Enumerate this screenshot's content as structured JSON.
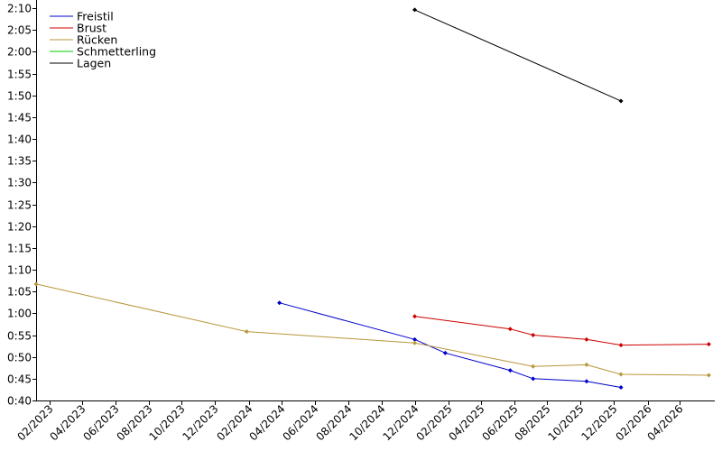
{
  "chart_data": {
    "type": "line",
    "x_axis": {
      "type": "date",
      "range": [
        "2023-01-07",
        "2026-06-04"
      ],
      "tick_labels": [
        "02/2023",
        "04/2023",
        "06/2023",
        "08/2023",
        "10/2023",
        "12/2023",
        "02/2024",
        "04/2024",
        "06/2024",
        "08/2024",
        "10/2024",
        "12/2024",
        "02/2025",
        "04/2025",
        "06/2025",
        "08/2025",
        "10/2025",
        "12/2025",
        "02/2026",
        "04/2026"
      ]
    },
    "y_axis": {
      "unit": "m:ss",
      "range_seconds": [
        40,
        130
      ],
      "tick_labels": [
        "0:40",
        "0:45",
        "0:50",
        "0:55",
        "1:00",
        "1:05",
        "1:10",
        "1:15",
        "1:20",
        "1:25",
        "1:30",
        "1:35",
        "1:40",
        "1:45",
        "1:50",
        "1:55",
        "2:00",
        "2:05",
        "2:10"
      ]
    },
    "grid": false,
    "legend_position": "top-left",
    "series": [
      {
        "name": "Freistil",
        "color": "#0000cc",
        "points": [
          {
            "x": "2024-03-28",
            "y": 62.4
          },
          {
            "x": "2024-12-01",
            "y": 54.0
          },
          {
            "x": "2025-01-26",
            "y": 50.9
          },
          {
            "x": "2025-05-25",
            "y": 46.9
          },
          {
            "x": "2025-07-06",
            "y": 45.0
          },
          {
            "x": "2025-10-12",
            "y": 44.4
          },
          {
            "x": "2025-12-14",
            "y": 43.0
          }
        ]
      },
      {
        "name": "Brust",
        "color": "#cc0000",
        "points": [
          {
            "x": "2024-12-01",
            "y": 59.3
          },
          {
            "x": "2025-05-25",
            "y": 56.4
          },
          {
            "x": "2025-07-06",
            "y": 55.0
          },
          {
            "x": "2025-10-12",
            "y": 54.0
          },
          {
            "x": "2025-12-14",
            "y": 52.7
          },
          {
            "x": "2026-05-24",
            "y": 52.9
          }
        ]
      },
      {
        "name": "Rücken",
        "color": "#b8963a",
        "points": [
          {
            "x": "2023-01-07",
            "y": 66.7
          },
          {
            "x": "2024-01-28",
            "y": 55.8
          },
          {
            "x": "2024-12-01",
            "y": 53.2
          },
          {
            "x": "2025-07-06",
            "y": 47.8
          },
          {
            "x": "2025-10-12",
            "y": 48.2
          },
          {
            "x": "2025-12-14",
            "y": 46.0
          },
          {
            "x": "2026-05-24",
            "y": 45.8
          }
        ]
      },
      {
        "name": "Schmetterling",
        "color": "#00cc00",
        "points": []
      },
      {
        "name": "Lagen",
        "color": "#000000",
        "points": [
          {
            "x": "2024-12-01",
            "y": 129.6
          },
          {
            "x": "2025-12-14",
            "y": 108.7
          }
        ]
      }
    ]
  }
}
